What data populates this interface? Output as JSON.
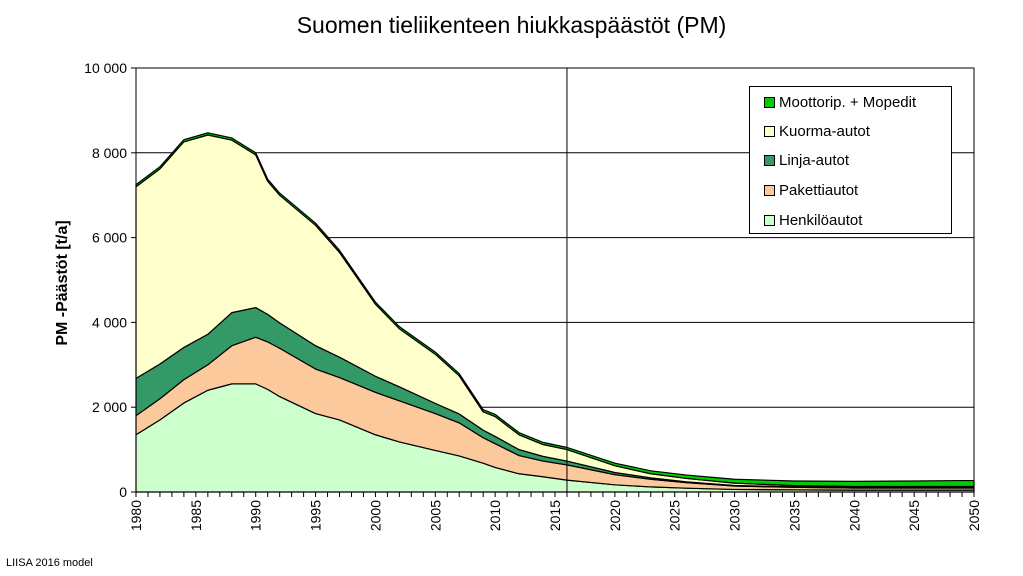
{
  "chart_data": {
    "type": "area",
    "title": "Suomen tieliikenteen hiukkaspäästöt (PM)",
    "ylabel": "PM -Päästöt [t/a]",
    "xlabel": "",
    "xlim": [
      1980,
      2050
    ],
    "ylim": [
      0,
      10000
    ],
    "x_ticks": [
      "1980",
      "1985",
      "1990",
      "1995",
      "2000",
      "2005",
      "2010",
      "2015",
      "2020",
      "2025",
      "2030",
      "2035",
      "2040",
      "2045",
      "2050"
    ],
    "y_ticks": [
      "0",
      "2 000",
      "4 000",
      "6 000",
      "8 000",
      "10 000"
    ],
    "y_tick_values": [
      0,
      2000,
      4000,
      6000,
      8000,
      10000
    ],
    "x_tick_values": [
      1980,
      1985,
      1990,
      1995,
      2000,
      2005,
      2010,
      2015,
      2020,
      2025,
      2030,
      2035,
      2040,
      2045,
      2050
    ],
    "vertical_marker_x": 2016,
    "grid": "horizontal",
    "legend_position": "top-right",
    "stacked": true,
    "x": [
      1980,
      1982,
      1984,
      1986,
      1988,
      1990,
      1991,
      1992,
      1995,
      1997,
      2000,
      2002,
      2005,
      2007,
      2009,
      2010,
      2012,
      2014,
      2016,
      2020,
      2023,
      2026,
      2030,
      2035,
      2040,
      2045,
      2049,
      2050
    ],
    "series": [
      {
        "name": "Henkilöautot",
        "color": "#ccffcc",
        "values": [
          1350,
          1700,
          2100,
          2400,
          2550,
          2550,
          2420,
          2250,
          1850,
          1700,
          1350,
          1180,
          980,
          850,
          680,
          580,
          430,
          360,
          280,
          170,
          120,
          90,
          60,
          50,
          45,
          45,
          45,
          45
        ]
      },
      {
        "name": "Pakettiautot",
        "color": "#fcc99c",
        "values": [
          450,
          500,
          550,
          600,
          900,
          1100,
          1120,
          1140,
          1050,
          1000,
          1000,
          970,
          870,
          780,
          600,
          560,
          430,
          370,
          360,
          240,
          180,
          130,
          80,
          60,
          50,
          50,
          50,
          50
        ]
      },
      {
        "name": "Linja-autot",
        "color": "#339966",
        "values": [
          880,
          820,
          760,
          720,
          780,
          700,
          650,
          600,
          550,
          480,
          380,
          330,
          240,
          210,
          180,
          170,
          140,
          110,
          90,
          50,
          35,
          20,
          15,
          10,
          10,
          10,
          10,
          10
        ]
      },
      {
        "name": "Kuorma-autot",
        "color": "#ffffcc",
        "values": [
          4520,
          4600,
          4850,
          4700,
          4070,
          3600,
          3140,
          3010,
          2840,
          2470,
          1700,
          1370,
          1160,
          900,
          430,
          470,
          350,
          280,
          270,
          160,
          95,
          80,
          55,
          30,
          25,
          25,
          25,
          25
        ]
      },
      {
        "name": "Moottorip. + Mopedit",
        "color": "#00cc00",
        "values": [
          50,
          50,
          50,
          50,
          50,
          50,
          50,
          50,
          50,
          50,
          50,
          50,
          50,
          50,
          50,
          50,
          50,
          50,
          50,
          60,
          70,
          80,
          90,
          110,
          120,
          130,
          140,
          140
        ]
      }
    ]
  },
  "legend": {
    "items": [
      {
        "label": "Moottorip. + Mopedit",
        "color": "#00cc00"
      },
      {
        "label": "Kuorma-autot",
        "color": "#ffffcc"
      },
      {
        "label": "Linja-autot",
        "color": "#339966"
      },
      {
        "label": "Pakettiautot",
        "color": "#fcc99c"
      },
      {
        "label": "Henkilöautot",
        "color": "#ccffcc"
      }
    ]
  },
  "footer": {
    "note": "LIISA 2016 model"
  }
}
